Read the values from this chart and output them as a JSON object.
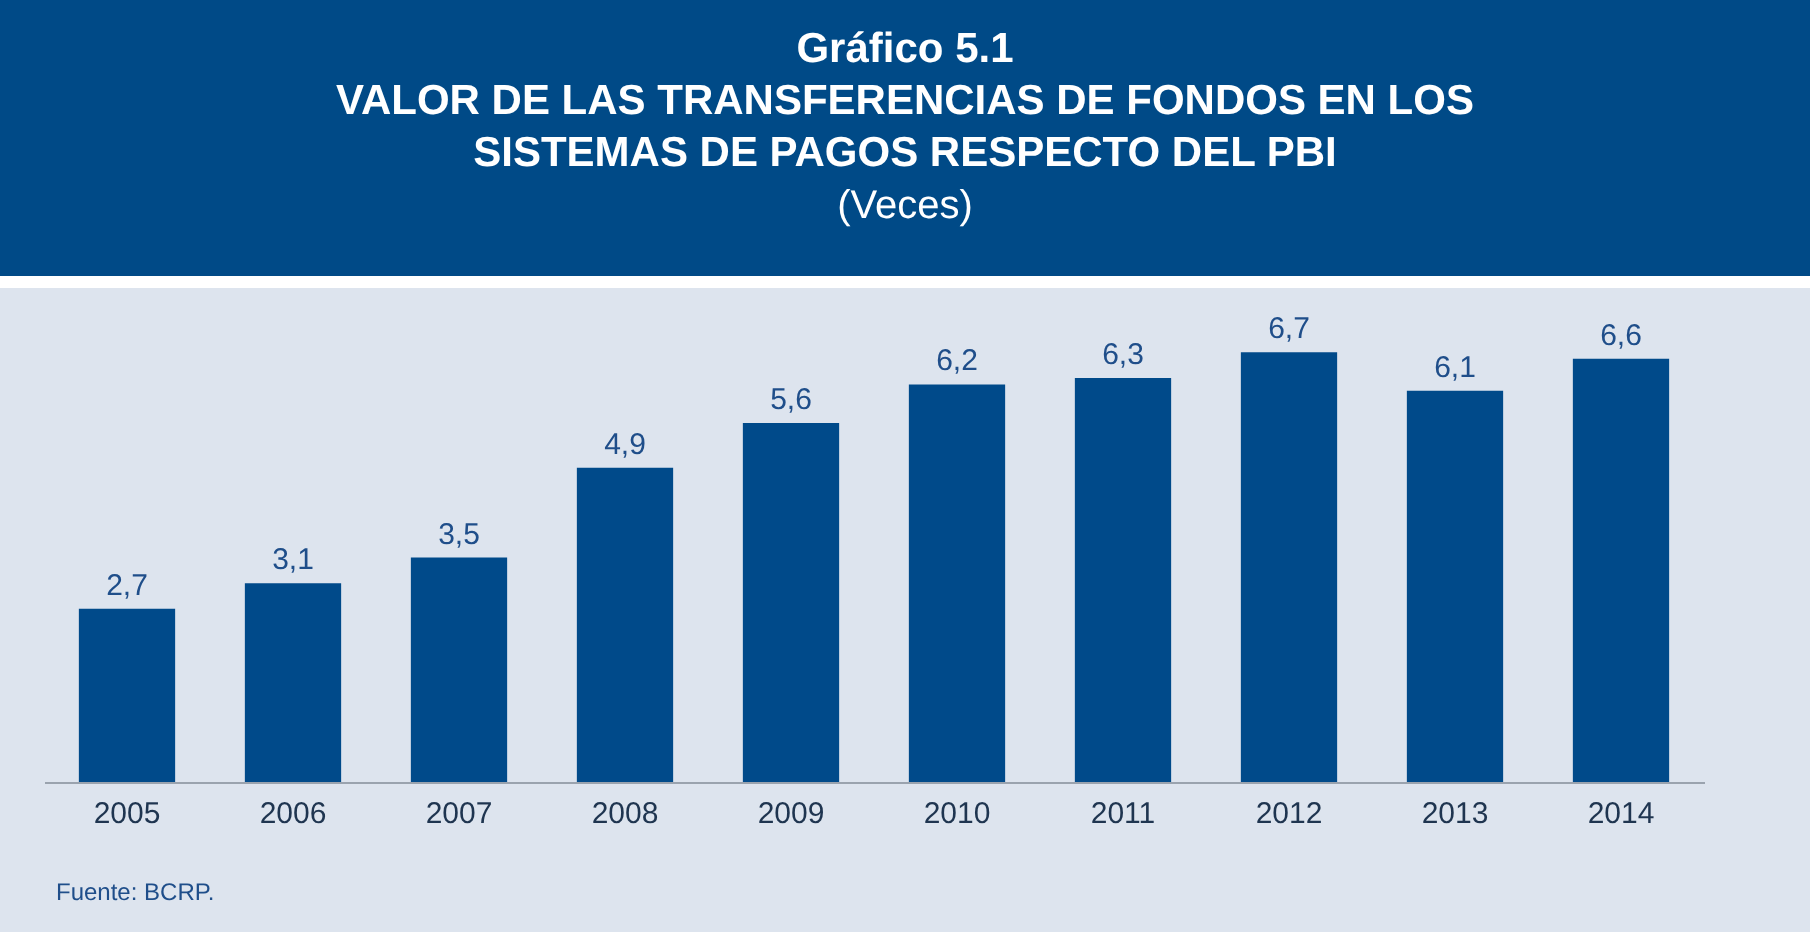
{
  "chart_data": {
    "type": "bar",
    "title": "VALOR DE LAS TRANSFERENCIAS DE FONDOS EN LOS SISTEMAS DE PAGOS RESPECTO DEL PBI",
    "subtitle": "(Veces)",
    "annotations": [
      "Gráfico 5.1",
      "Fuente: BCRP."
    ],
    "categories": [
      "2005",
      "2006",
      "2007",
      "2008",
      "2009",
      "2010",
      "2011",
      "2012",
      "2013",
      "2014"
    ],
    "values": [
      2.7,
      3.1,
      3.5,
      4.9,
      5.6,
      6.2,
      6.3,
      6.7,
      6.1,
      6.6
    ],
    "value_labels": [
      "2,7",
      "3,1",
      "3,5",
      "4,9",
      "5,6",
      "6,2",
      "6,3",
      "6,7",
      "6,1",
      "6,6"
    ],
    "color": "#004a8a",
    "grid": false
  }
}
